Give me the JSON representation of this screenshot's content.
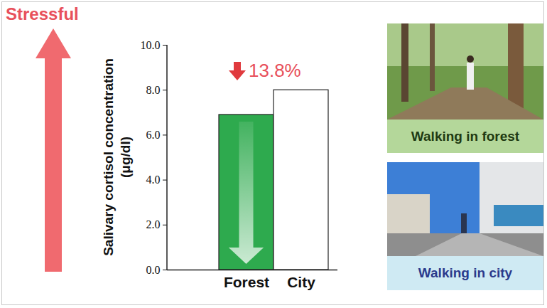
{
  "chart_data": {
    "type": "bar",
    "categories": [
      "Forest",
      "City"
    ],
    "values": [
      6.9,
      8.0
    ],
    "colors": [
      "#2eaa4e",
      "#ffffff"
    ],
    "ylabel": "Salivary cortisol concentration (μg/dl)",
    "ylim": [
      0,
      10
    ],
    "yticks": [
      {
        "value": 0,
        "label": "0.0"
      },
      {
        "value": 2,
        "label": "2.0"
      },
      {
        "value": 4,
        "label": "4.0"
      },
      {
        "value": 6,
        "label": "6.0"
      },
      {
        "value": 8,
        "label": "8.0"
      },
      {
        "value": 10,
        "label": "10.0"
      }
    ],
    "annotations": [
      "Stressful",
      "13.8%"
    ],
    "images": [
      {
        "caption": "Walking in forest"
      },
      {
        "caption": "Walking in city"
      }
    ]
  }
}
